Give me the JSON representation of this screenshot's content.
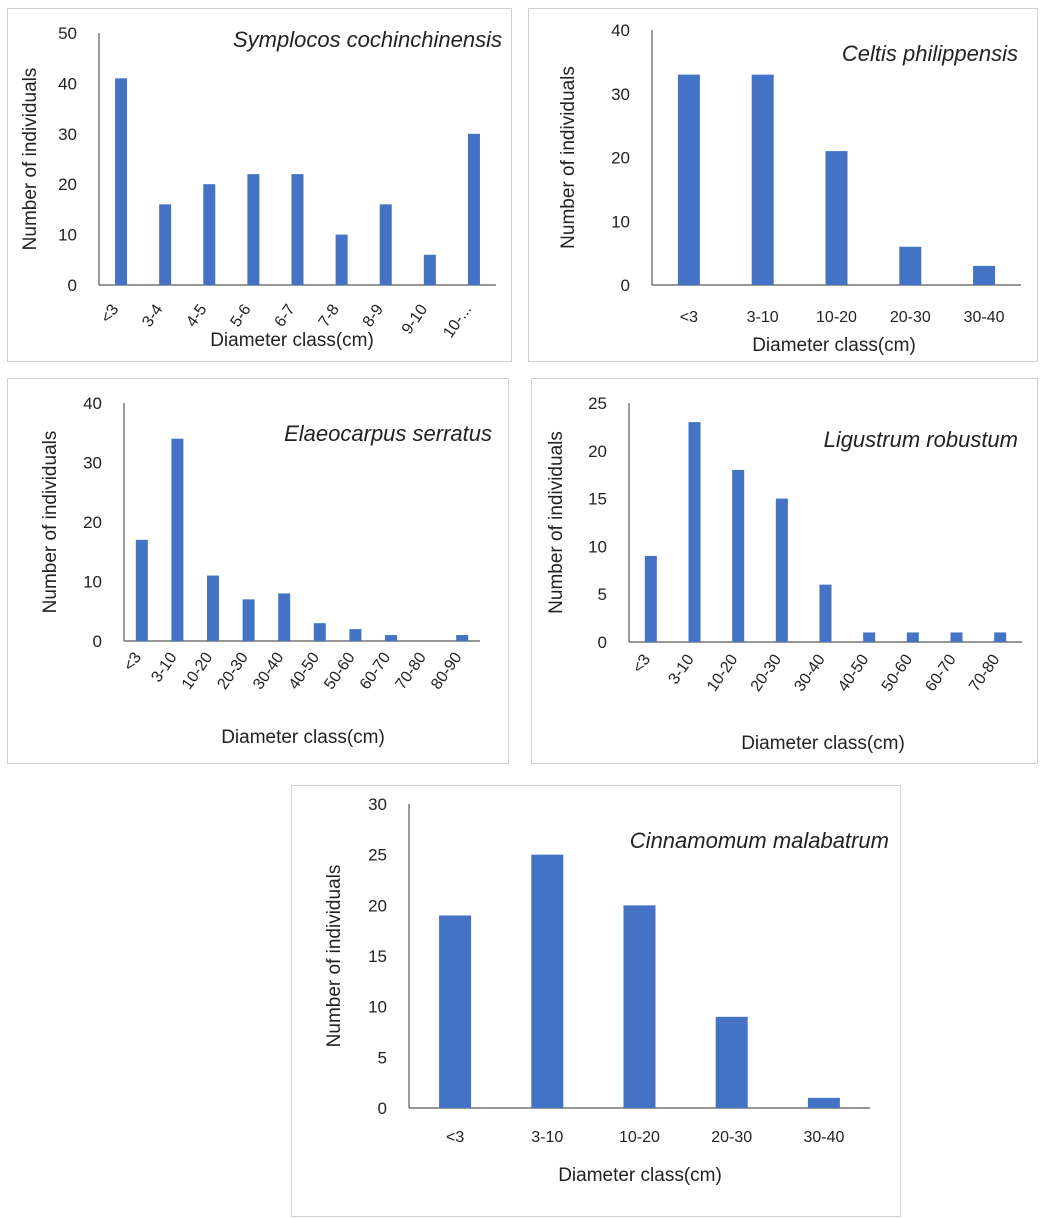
{
  "colors": {
    "bar": "#4472C4",
    "axis": "#595959",
    "text": "#222222",
    "border": "#d0d0d0"
  },
  "chart_data": [
    {
      "type": "bar",
      "title": "Symplocos cochinchinensis",
      "xlabel": "Diameter class(cm)",
      "ylabel": "Number of individuals",
      "categories": [
        "<3",
        "3-4",
        "4-5",
        "5-6",
        "6-7",
        "7-8",
        "8-9",
        "9-10",
        "10-..."
      ],
      "values": [
        41,
        16,
        20,
        22,
        22,
        10,
        16,
        6,
        30
      ],
      "ylim": [
        0,
        50
      ],
      "yticks": [
        0,
        10,
        20,
        30,
        40,
        50
      ],
      "grid": false,
      "legend": "none"
    },
    {
      "type": "bar",
      "title": "Celtis philippensis",
      "xlabel": "Diameter class(cm)",
      "ylabel": "Number of individuals",
      "categories": [
        "<3",
        "3-10",
        "10-20",
        "20-30",
        "30-40"
      ],
      "values": [
        33,
        33,
        21,
        6,
        3
      ],
      "ylim": [
        0,
        40
      ],
      "yticks": [
        0,
        10,
        20,
        30,
        40
      ],
      "grid": false,
      "legend": "none"
    },
    {
      "type": "bar",
      "title": "Elaeocarpus serratus",
      "xlabel": "Diameter class(cm)",
      "ylabel": "Number of individuals",
      "categories": [
        "<3",
        "3-10",
        "10-20",
        "20-30",
        "30-40",
        "40-50",
        "50-60",
        "60-70",
        "70-80",
        "80-90"
      ],
      "values": [
        17,
        34,
        11,
        7,
        8,
        3,
        2,
        1,
        0,
        1
      ],
      "ylim": [
        0,
        40
      ],
      "yticks": [
        0,
        10,
        20,
        30,
        40
      ],
      "grid": false,
      "legend": "none"
    },
    {
      "type": "bar",
      "title": "Ligustrum robustum",
      "xlabel": "Diameter class(cm)",
      "ylabel": "Number of individuals",
      "categories": [
        "<3",
        "3-10",
        "10-20",
        "20-30",
        "30-40",
        "40-50",
        "50-60",
        "60-70",
        "70-80"
      ],
      "values": [
        9,
        23,
        18,
        15,
        6,
        1,
        1,
        1,
        1
      ],
      "ylim": [
        0,
        25
      ],
      "yticks": [
        0,
        5,
        10,
        15,
        20,
        25
      ],
      "grid": false,
      "legend": "none"
    },
    {
      "type": "bar",
      "title": "Cinnamomum malabatrum",
      "xlabel": "Diameter class(cm)",
      "ylabel": "Number of individuals",
      "categories": [
        "<3",
        "3-10",
        "10-20",
        "20-30",
        "30-40"
      ],
      "values": [
        19,
        25,
        20,
        9,
        1
      ],
      "ylim": [
        0,
        30
      ],
      "yticks": [
        0,
        5,
        10,
        15,
        20,
        25,
        30
      ],
      "grid": false,
      "legend": "none"
    }
  ]
}
